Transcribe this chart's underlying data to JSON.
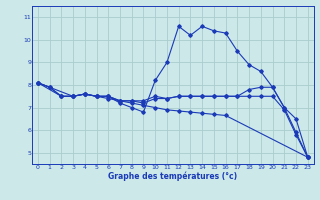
{
  "xlabel": "Graphe des températures (°c)",
  "ylabel": "",
  "bg_color": "#cce8e8",
  "grid_color": "#aacccc",
  "line_color": "#1a3ab8",
  "xlim": [
    -0.5,
    23.5
  ],
  "ylim": [
    4.5,
    11.5
  ],
  "yticks": [
    5,
    6,
    7,
    8,
    9,
    10,
    11
  ],
  "xticks": [
    0,
    1,
    2,
    3,
    4,
    5,
    6,
    7,
    8,
    9,
    10,
    11,
    12,
    13,
    14,
    15,
    16,
    17,
    18,
    19,
    20,
    21,
    22,
    23
  ],
  "series": [
    {
      "x": [
        0,
        1,
        2,
        3,
        4,
        5,
        6,
        7,
        8,
        9,
        10,
        11,
        12,
        13,
        14,
        15,
        16,
        17,
        18,
        19,
        20,
        21,
        22,
        23
      ],
      "y": [
        8.1,
        7.9,
        7.5,
        7.5,
        7.6,
        7.5,
        7.5,
        7.3,
        7.3,
        7.3,
        7.5,
        7.4,
        7.5,
        7.5,
        7.5,
        7.5,
        7.5,
        7.5,
        7.8,
        7.9,
        7.9,
        7.0,
        6.5,
        4.8
      ]
    },
    {
      "x": [
        0,
        1,
        2,
        3,
        4,
        5,
        6,
        7,
        8,
        9,
        10,
        11,
        12,
        13,
        14,
        15,
        16,
        17,
        18,
        19,
        20,
        21,
        22,
        23
      ],
      "y": [
        8.1,
        7.9,
        7.5,
        7.5,
        7.6,
        7.5,
        7.5,
        7.2,
        7.0,
        6.8,
        8.2,
        9.0,
        10.6,
        10.2,
        10.6,
        10.4,
        10.3,
        9.5,
        8.9,
        8.6,
        7.9,
        7.0,
        5.9,
        4.8
      ]
    },
    {
      "x": [
        0,
        2,
        3,
        4,
        5,
        6,
        7,
        8,
        9,
        10,
        11,
        12,
        13,
        14,
        15,
        16,
        17,
        18,
        19,
        20,
        21,
        22,
        23
      ],
      "y": [
        8.1,
        7.5,
        7.5,
        7.6,
        7.5,
        7.5,
        7.3,
        7.3,
        7.2,
        7.4,
        7.4,
        7.5,
        7.5,
        7.5,
        7.5,
        7.5,
        7.5,
        7.5,
        7.5,
        7.5,
        6.9,
        5.8,
        4.8
      ]
    },
    {
      "x": [
        0,
        3,
        4,
        5,
        6,
        7,
        8,
        9,
        10,
        11,
        12,
        13,
        14,
        15,
        16,
        23
      ],
      "y": [
        8.1,
        7.5,
        7.6,
        7.5,
        7.4,
        7.3,
        7.2,
        7.1,
        7.0,
        6.9,
        6.85,
        6.8,
        6.75,
        6.7,
        6.65,
        4.8
      ]
    }
  ]
}
